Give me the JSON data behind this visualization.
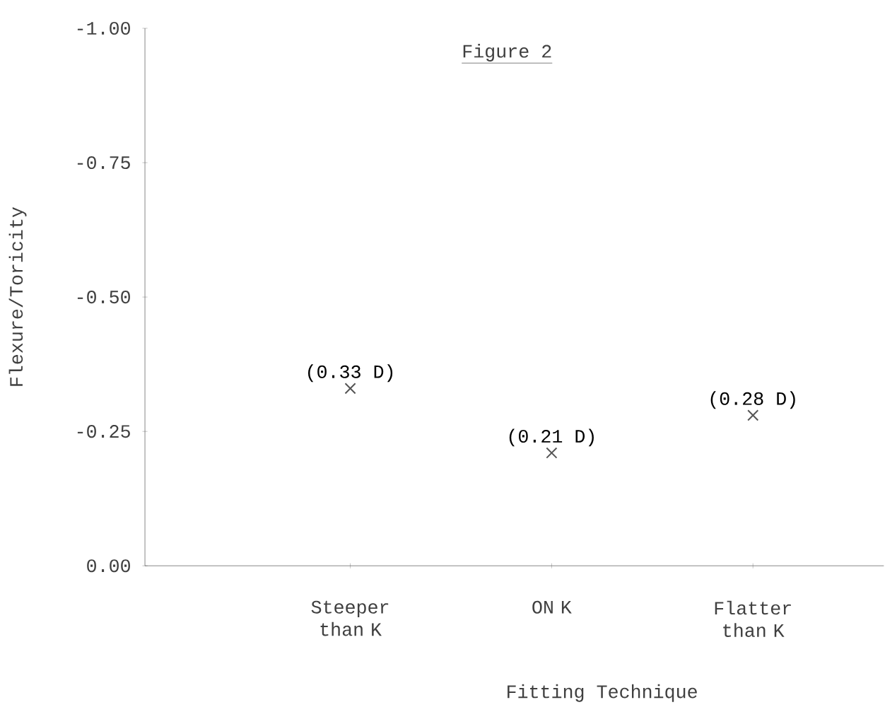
{
  "chart_data": {
    "type": "scatter",
    "title": "Figure 2",
    "xlabel": "Fitting Technique",
    "ylabel": "Flexure/Toricity",
    "categories": [
      "Steeper than K",
      "ON K",
      "Flatter than K"
    ],
    "values": [
      -0.33,
      -0.21,
      -0.28
    ],
    "value_labels": [
      "(0.33 D)",
      "(0.21 D)",
      "(0.28 D)"
    ],
    "color": "#555555",
    "marker": "cross",
    "ylim": [
      0,
      -1
    ],
    "yticks": [
      {
        "value": 0,
        "label": "0.00"
      },
      {
        "value": -0.25,
        "label": "-0.25"
      },
      {
        "value": -0.5,
        "label": "-0.50"
      },
      {
        "value": -0.75,
        "label": "-0.75"
      },
      {
        "value": -1,
        "label": "-1.00"
      }
    ]
  }
}
